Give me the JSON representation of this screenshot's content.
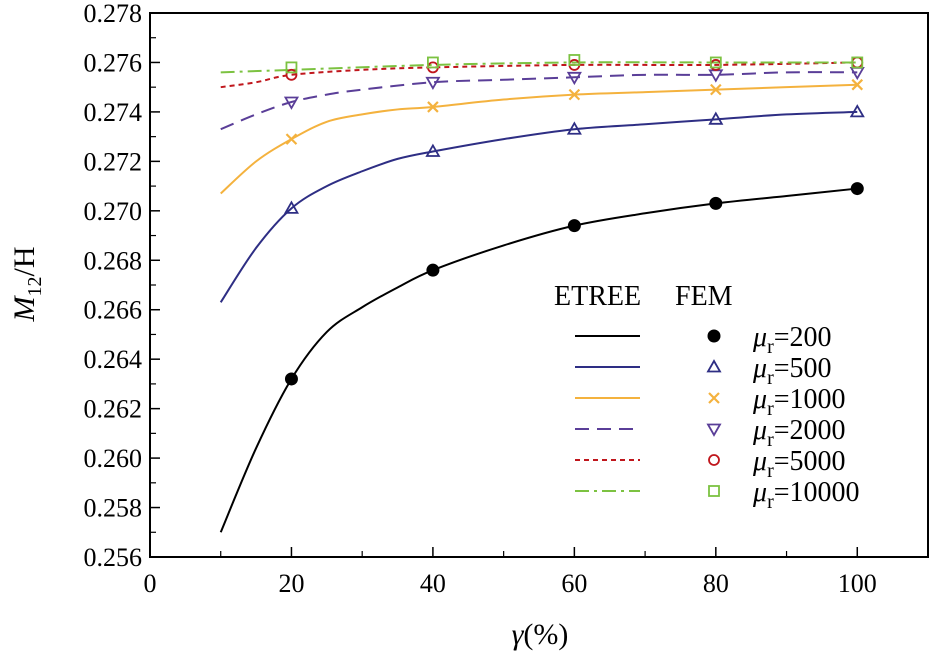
{
  "chart_data": {
    "type": "line",
    "xlim": [
      0,
      110
    ],
    "ylim": [
      0.256,
      0.278
    ],
    "x_ticks": [
      "0",
      "20",
      "40",
      "60",
      "80",
      "100"
    ],
    "x_tick_values": [
      0,
      20,
      40,
      60,
      80,
      100
    ],
    "y_ticks": [
      "0.256",
      "0.258",
      "0.260",
      "0.262",
      "0.264",
      "0.266",
      "0.268",
      "0.270",
      "0.272",
      "0.274",
      "0.276",
      "0.278"
    ],
    "y_tick_values": [
      0.256,
      0.258,
      0.26,
      0.262,
      0.264,
      0.266,
      0.268,
      0.27,
      0.272,
      0.274,
      0.276,
      0.278
    ],
    "xlabel": {
      "symbol": "γ",
      "rest": "(%)"
    },
    "ylabel": {
      "symbol": "M",
      "sub": "12",
      "rest": "/H"
    },
    "legend": {
      "header_etree": "ETREE",
      "header_fem": "FEM",
      "placement": "lower-right"
    },
    "series": [
      {
        "name": "μr=200",
        "mu": "μ",
        "sub": "r",
        "value_text": "=200",
        "color": "#000000",
        "dash": "",
        "marker": "filled-circle",
        "line_x": [
          10,
          15,
          20,
          25,
          30,
          35,
          40,
          50,
          60,
          70,
          80,
          90,
          100
        ],
        "line_y": [
          0.257,
          0.2604,
          0.2632,
          0.2651,
          0.2661,
          0.2669,
          0.2676,
          0.2686,
          0.2694,
          0.2699,
          0.2703,
          0.2706,
          0.2709
        ],
        "fem_x": [
          20,
          40,
          60,
          80,
          100
        ],
        "fem_y": [
          0.2632,
          0.2676,
          0.2694,
          0.2703,
          0.2709
        ]
      },
      {
        "name": "μr=500",
        "mu": "μ",
        "sub": "r",
        "value_text": "=500",
        "color": "#2e2e84",
        "dash": "",
        "marker": "triangle-up",
        "line_x": [
          10,
          15,
          20,
          25,
          30,
          35,
          40,
          50,
          60,
          70,
          80,
          90,
          100
        ],
        "line_y": [
          0.2663,
          0.2685,
          0.2701,
          0.271,
          0.2716,
          0.2721,
          0.2724,
          0.2729,
          0.2733,
          0.2735,
          0.2737,
          0.2739,
          0.274
        ],
        "fem_x": [
          20,
          40,
          60,
          80,
          100
        ],
        "fem_y": [
          0.2701,
          0.2724,
          0.2733,
          0.2737,
          0.274
        ]
      },
      {
        "name": "μr=1000",
        "mu": "μ",
        "sub": "r",
        "value_text": "=1000",
        "color": "#f4b23e",
        "dash": "",
        "marker": "x-cross",
        "line_x": [
          10,
          15,
          20,
          25,
          30,
          35,
          40,
          50,
          60,
          70,
          80,
          90,
          100
        ],
        "line_y": [
          0.2707,
          0.272,
          0.2729,
          0.2736,
          0.2739,
          0.2741,
          0.2742,
          0.2745,
          0.2747,
          0.2748,
          0.2749,
          0.275,
          0.2751
        ],
        "fem_x": [
          20,
          40,
          60,
          80,
          100
        ],
        "fem_y": [
          0.2729,
          0.2742,
          0.2747,
          0.2749,
          0.2751
        ]
      },
      {
        "name": "μr=2000",
        "mu": "μ",
        "sub": "r",
        "value_text": "=2000",
        "color": "#5a3e98",
        "dash": "14,8",
        "marker": "triangle-down",
        "line_x": [
          10,
          15,
          20,
          25,
          30,
          40,
          50,
          60,
          70,
          80,
          90,
          100
        ],
        "line_y": [
          0.2733,
          0.2739,
          0.2744,
          0.2747,
          0.2749,
          0.2752,
          0.2753,
          0.2754,
          0.2755,
          0.2755,
          0.2756,
          0.2756
        ],
        "fem_x": [
          20,
          40,
          60,
          80,
          100
        ],
        "fem_y": [
          0.2744,
          0.2752,
          0.2754,
          0.2755,
          0.2756
        ]
      },
      {
        "name": "μr=5000",
        "mu": "μ",
        "sub": "r",
        "value_text": "=5000",
        "color": "#c0161c",
        "dash": "5,4",
        "marker": "circle-open",
        "line_x": [
          10,
          15,
          20,
          30,
          40,
          60,
          80,
          100
        ],
        "line_y": [
          0.275,
          0.2752,
          0.2755,
          0.2757,
          0.2758,
          0.2759,
          0.2759,
          0.276
        ],
        "fem_x": [
          20,
          40,
          60,
          80,
          100
        ],
        "fem_y": [
          0.2755,
          0.2758,
          0.2759,
          0.2759,
          0.276
        ]
      },
      {
        "name": "μr=10000",
        "mu": "μ",
        "sub": "r",
        "value_text": "=10000",
        "color": "#7cc241",
        "dash": "14,5,3,5",
        "marker": "square-open",
        "line_x": [
          10,
          20,
          40,
          60,
          80,
          100
        ],
        "line_y": [
          0.2756,
          0.2757,
          0.2759,
          0.276,
          0.276,
          0.276
        ],
        "fem_x": [
          20,
          40,
          60,
          80,
          100
        ],
        "fem_y": [
          0.2758,
          0.276,
          0.2761,
          0.276,
          0.276
        ]
      }
    ]
  }
}
